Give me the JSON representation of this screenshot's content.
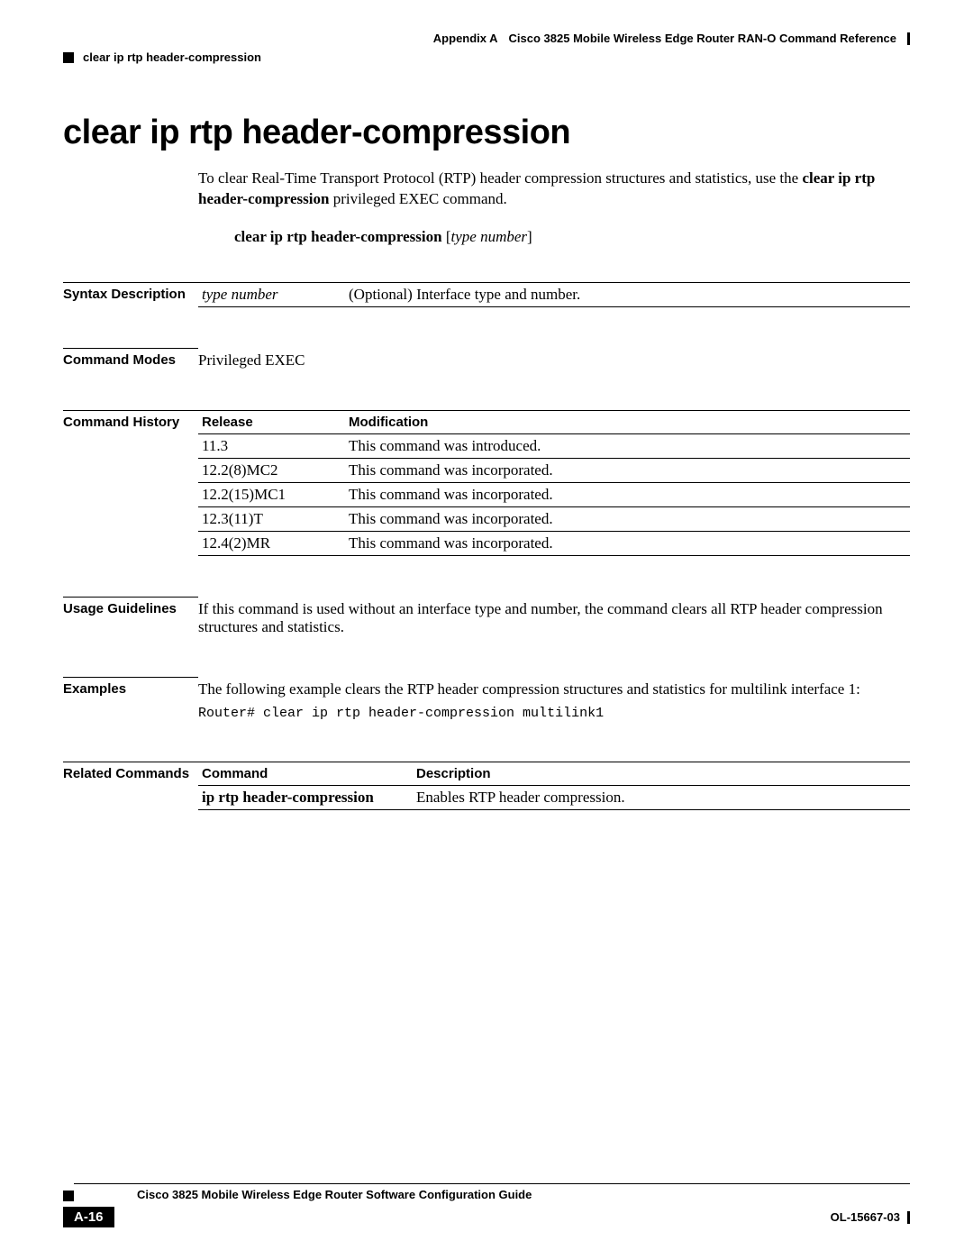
{
  "header": {
    "appendix": "Appendix A",
    "doc_title": "Cisco 3825 Mobile Wireless Edge Router RAN-O Command Reference",
    "running_head": "clear ip rtp header-compression"
  },
  "title": "clear ip rtp header-compression",
  "intro": {
    "pre": "To clear Real-Time Transport Protocol (RTP) header compression structures and statistics, use the ",
    "cmd": "clear ip rtp header-compression",
    "post": " privileged EXEC command."
  },
  "syntax": {
    "cmd": "clear ip rtp header-compression",
    "arg_open": " [",
    "arg": "type number",
    "arg_close": "]"
  },
  "sections": {
    "syntax_desc_label": "Syntax Description",
    "syntax_desc": {
      "arg": "type number",
      "desc": "(Optional) Interface type and number."
    },
    "modes_label": "Command Modes",
    "modes_value": "Privileged EXEC",
    "history_label": "Command History",
    "history_headers": {
      "release": "Release",
      "modification": "Modification"
    },
    "history_rows": [
      {
        "release": "11.3",
        "mod": "This command was introduced."
      },
      {
        "release": "12.2(8)MC2",
        "mod": "This command was incorporated."
      },
      {
        "release": "12.2(15)MC1",
        "mod": "This command was incorporated."
      },
      {
        "release": "12.3(11)T",
        "mod": "This command was incorporated."
      },
      {
        "release": "12.4(2)MR",
        "mod": "This command was incorporated."
      }
    ],
    "usage_label": "Usage Guidelines",
    "usage_text": "If this command is used without an interface type and number, the command clears all RTP header compression structures and statistics.",
    "examples_label": "Examples",
    "examples_text": "The following example clears the RTP header compression structures and statistics for multilink interface 1:",
    "examples_code": "Router# clear ip rtp header-compression multilink1",
    "related_label": "Related Commands",
    "related_headers": {
      "command": "Command",
      "description": "Description"
    },
    "related_rows": [
      {
        "cmd": "ip rtp header-compression",
        "desc": "Enables RTP header compression."
      }
    ]
  },
  "footer": {
    "book": "Cisco 3825 Mobile Wireless Edge Router Software Configuration Guide",
    "page": "A-16",
    "docnum": "OL-15667-03"
  }
}
